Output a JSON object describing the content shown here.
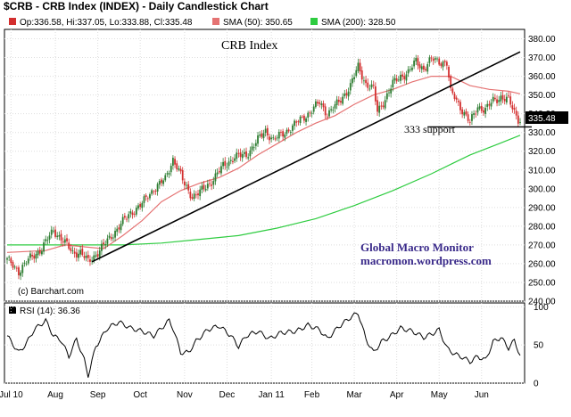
{
  "chart_title": "$CRB - CRB Index (INDEX) - Daily Candlestick Chart",
  "legend": {
    "ohlc_text": "Op:336.58, Hi:337.05, Lo:333.88, Cl:335.48",
    "sma50_text": "SMA (50): 350.65",
    "sma200_text": "SMA (200): 328.50"
  },
  "colors": {
    "candle_up": "#2e7d32",
    "candle_down": "#d32f2f",
    "sma50": "#e57373",
    "sma200": "#2ecc40",
    "trendline": "#000000",
    "rsi_line": "#000000",
    "last_price_box": "#000000"
  },
  "annotations": {
    "inner_title": "CRB Index",
    "support_label": "333  support",
    "watermark_line1": "Global Macro Monitor",
    "watermark_line2": "macromon.wordpress.com",
    "copyright": "(c) Barchart.com",
    "last_price_label": "335.48"
  },
  "rsi_panel": {
    "label": "RSI (14): 36.36"
  },
  "chart_data": [
    {
      "type": "candlestick",
      "title": "CRB Index",
      "ylim": [
        240,
        385
      ],
      "y_ticks": [
        "380.00",
        "370.00",
        "360.00",
        "350.00",
        "340.00",
        "330.00",
        "320.00",
        "310.00",
        "300.00",
        "290.00",
        "280.00",
        "270.00",
        "260.00",
        "250.00",
        "240.00"
      ],
      "x_tick_labels": [
        "Jul 10",
        "Aug",
        "Sep",
        "Oct",
        "Nov",
        "Dec",
        "Jan 11",
        "Feb",
        "Mar",
        "Apr",
        "May",
        "Jun"
      ],
      "close_anchors": [
        [
          0,
          262
        ],
        [
          6,
          256
        ],
        [
          12,
          263
        ],
        [
          18,
          268
        ],
        [
          24,
          278
        ],
        [
          30,
          271
        ],
        [
          34,
          266
        ],
        [
          38,
          266
        ],
        [
          42,
          261
        ],
        [
          46,
          265
        ],
        [
          52,
          272
        ],
        [
          58,
          280
        ],
        [
          64,
          287
        ],
        [
          70,
          292
        ],
        [
          76,
          300
        ],
        [
          82,
          305
        ],
        [
          86,
          316
        ],
        [
          88,
          312
        ],
        [
          92,
          302
        ],
        [
          96,
          296
        ],
        [
          100,
          298
        ],
        [
          106,
          304
        ],
        [
          112,
          312
        ],
        [
          118,
          317
        ],
        [
          124,
          318
        ],
        [
          130,
          326
        ],
        [
          134,
          331
        ],
        [
          138,
          326
        ],
        [
          144,
          330
        ],
        [
          150,
          335
        ],
        [
          156,
          340
        ],
        [
          162,
          346
        ],
        [
          166,
          340
        ],
        [
          172,
          346
        ],
        [
          178,
          355
        ],
        [
          182,
          365
        ],
        [
          186,
          356
        ],
        [
          190,
          353
        ],
        [
          192,
          341
        ],
        [
          196,
          348
        ],
        [
          200,
          356
        ],
        [
          204,
          360
        ],
        [
          208,
          362
        ],
        [
          212,
          368
        ],
        [
          216,
          364
        ],
        [
          220,
          369
        ],
        [
          224,
          368
        ],
        [
          228,
          367
        ],
        [
          230,
          351
        ],
        [
          232,
          349
        ],
        [
          236,
          342
        ],
        [
          240,
          335
        ],
        [
          244,
          344
        ],
        [
          248,
          342
        ],
        [
          252,
          347
        ],
        [
          256,
          349
        ],
        [
          260,
          347
        ],
        [
          263,
          341
        ],
        [
          266,
          335.48
        ]
      ],
      "series": [
        {
          "name": "SMA (50)",
          "points": [
            [
              0,
              266
            ],
            [
              20,
              267
            ],
            [
              30,
              270
            ],
            [
              40,
              269
            ],
            [
              50,
              268
            ],
            [
              60,
              275
            ],
            [
              70,
              283
            ],
            [
              80,
              293
            ],
            [
              90,
              299
            ],
            [
              100,
              303
            ],
            [
              110,
              306
            ],
            [
              120,
              311
            ],
            [
              130,
              318
            ],
            [
              140,
              324
            ],
            [
              150,
              330
            ],
            [
              160,
              335
            ],
            [
              170,
              339
            ],
            [
              180,
              345
            ],
            [
              190,
              350
            ],
            [
              200,
              353
            ],
            [
              210,
              357
            ],
            [
              220,
              360
            ],
            [
              230,
              360
            ],
            [
              240,
              355
            ],
            [
              250,
              353
            ],
            [
              260,
              352
            ],
            [
              266,
              350.65
            ]
          ]
        },
        {
          "name": "SMA (200)",
          "points": [
            [
              0,
              270
            ],
            [
              20,
              270
            ],
            [
              40,
              270
            ],
            [
              60,
              270
            ],
            [
              80,
              271
            ],
            [
              100,
              273
            ],
            [
              120,
              275
            ],
            [
              140,
              279
            ],
            [
              160,
              284
            ],
            [
              180,
              291
            ],
            [
              200,
              299
            ],
            [
              220,
              308
            ],
            [
              240,
              318
            ],
            [
              255,
              324
            ],
            [
              266,
              328.5
            ]
          ]
        },
        {
          "name": "Trendline",
          "points": [
            [
              44,
              261
            ],
            [
              266,
              373
            ]
          ]
        },
        {
          "name": "333 support",
          "points": [
            [
              218,
              333
            ],
            [
              272,
              333
            ]
          ]
        }
      ],
      "n_bars": 267
    },
    {
      "type": "line",
      "title": "RSI (14): 36.36",
      "ylim": [
        0,
        105
      ],
      "y_ticks": [
        "100",
        "50",
        "0"
      ],
      "series": [
        {
          "name": "RSI (14)",
          "points": [
            [
              0,
              62
            ],
            [
              6,
              40
            ],
            [
              10,
              52
            ],
            [
              14,
              70
            ],
            [
              20,
              82
            ],
            [
              24,
              62
            ],
            [
              28,
              56
            ],
            [
              32,
              35
            ],
            [
              36,
              58
            ],
            [
              40,
              30
            ],
            [
              42,
              10
            ],
            [
              46,
              48
            ],
            [
              52,
              72
            ],
            [
              58,
              80
            ],
            [
              64,
              72
            ],
            [
              70,
              68
            ],
            [
              76,
              62
            ],
            [
              80,
              72
            ],
            [
              84,
              82
            ],
            [
              86,
              72
            ],
            [
              90,
              40
            ],
            [
              94,
              40
            ],
            [
              98,
              55
            ],
            [
              104,
              70
            ],
            [
              110,
              75
            ],
            [
              116,
              62
            ],
            [
              120,
              48
            ],
            [
              124,
              62
            ],
            [
              130,
              68
            ],
            [
              136,
              58
            ],
            [
              142,
              66
            ],
            [
              150,
              68
            ],
            [
              156,
              76
            ],
            [
              162,
              70
            ],
            [
              166,
              58
            ],
            [
              172,
              74
            ],
            [
              178,
              86
            ],
            [
              182,
              92
            ],
            [
              186,
              58
            ],
            [
              190,
              40
            ],
            [
              194,
              54
            ],
            [
              198,
              60
            ],
            [
              204,
              72
            ],
            [
              210,
              68
            ],
            [
              216,
              60
            ],
            [
              220,
              64
            ],
            [
              224,
              70
            ],
            [
              228,
              46
            ],
            [
              232,
              38
            ],
            [
              236,
              34
            ],
            [
              240,
              28
            ],
            [
              244,
              35
            ],
            [
              248,
              30
            ],
            [
              252,
              54
            ],
            [
              256,
              60
            ],
            [
              260,
              46
            ],
            [
              263,
              56
            ],
            [
              266,
              36.36
            ]
          ]
        }
      ]
    }
  ]
}
